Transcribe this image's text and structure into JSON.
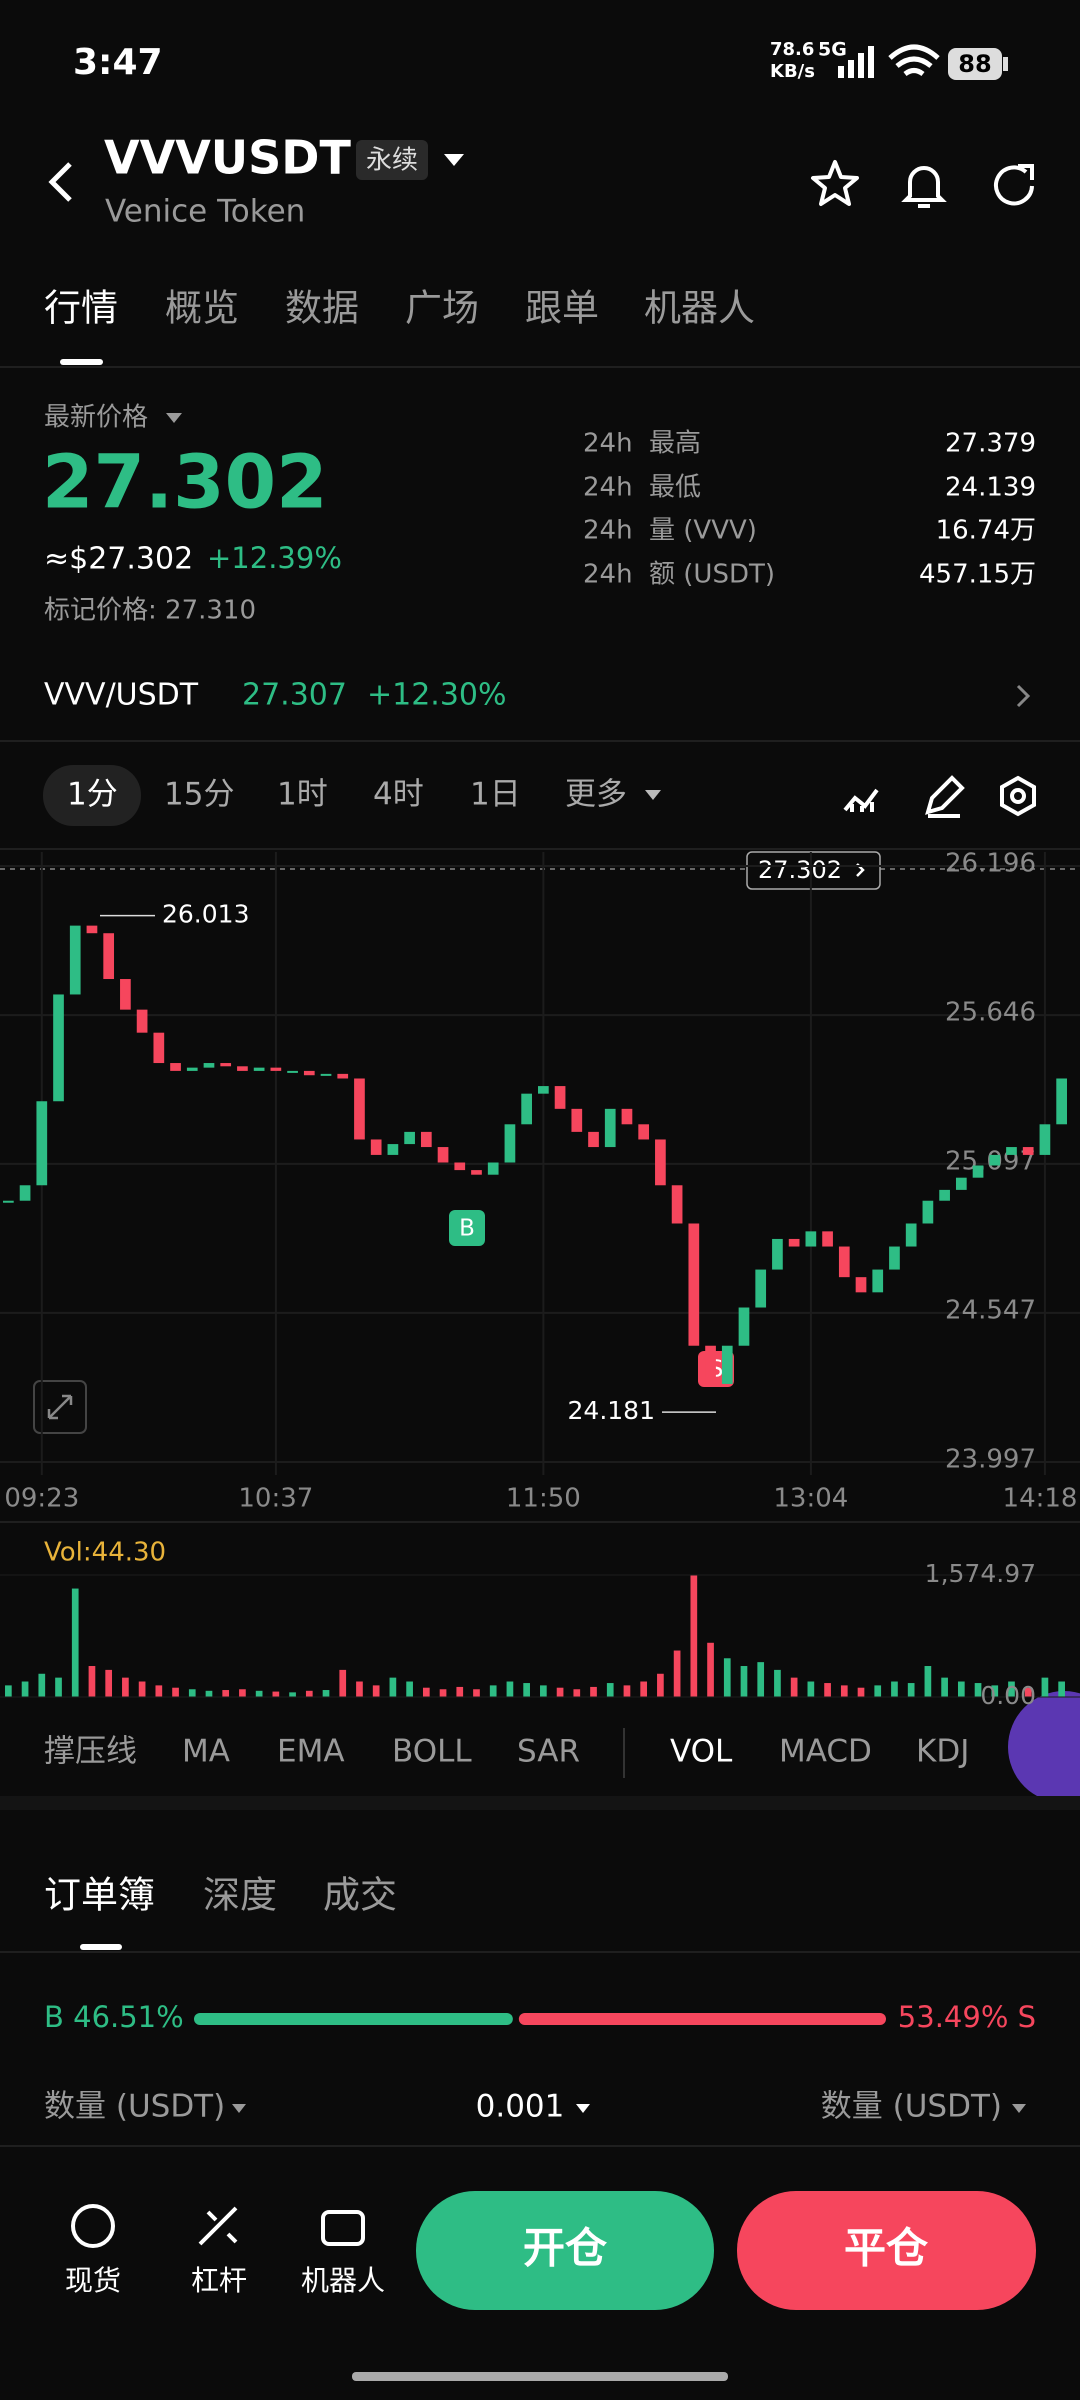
{
  "status": {
    "time": "3:47",
    "speed": "78.6",
    "speed_unit": "KB/s",
    "network": "5G",
    "battery": "88"
  },
  "header": {
    "symbol": "VVVUSDT",
    "contract": "永续",
    "name": "Venice Token"
  },
  "tabs": [
    "行情",
    "概览",
    "数据",
    "广场",
    "跟单",
    "机器人"
  ],
  "price": {
    "label": "最新价格",
    "last": "27.302",
    "usd": "≈$27.302",
    "change": "+12.39%",
    "mark": "标记价格: 27.310"
  },
  "stats": [
    {
      "period": "24h",
      "label": "最高",
      "value": "27.379"
    },
    {
      "period": "24h",
      "label": "最低",
      "value": "24.139"
    },
    {
      "period": "24h",
      "label": "量 (VVV)",
      "value": "16.74万"
    },
    {
      "period": "24h",
      "label": "额 (USDT)",
      "value": "457.15万"
    }
  ],
  "spot": {
    "pair": "VVV/USDT",
    "price": "27.307",
    "change": "+12.30%"
  },
  "intervals": [
    "1分",
    "15分",
    "1时",
    "4时",
    "1日",
    "更多"
  ],
  "chart_data": {
    "type": "candlestick",
    "color_up": "#2ebd85",
    "color_down": "#f6465d",
    "categories": [
      null,
      null,
      "09:23",
      null,
      null,
      null,
      null,
      null,
      null,
      null,
      null,
      null,
      null,
      null,
      null,
      null,
      "10:37",
      null,
      null,
      null,
      null,
      null,
      null,
      null,
      null,
      null,
      null,
      null,
      null,
      null,
      null,
      null,
      "11:50",
      null,
      null,
      null,
      null,
      null,
      null,
      null,
      null,
      null,
      null,
      null,
      null,
      null,
      null,
      null,
      "13:04",
      null,
      null,
      null,
      null,
      null,
      null,
      null,
      null,
      null,
      null,
      null,
      null,
      null,
      "14:18",
      null
    ],
    "values": [
      24.961,
      25.018,
      25.328,
      25.722,
      25.976,
      25.948,
      25.779,
      25.666,
      25.581,
      25.469,
      25.44,
      25.452,
      25.469,
      25.457,
      25.44,
      25.452,
      25.44,
      25.44,
      25.424,
      25.429,
      25.412,
      25.187,
      25.13,
      25.17,
      25.215,
      25.159,
      25.102,
      25.074,
      25.057,
      25.102,
      25.243,
      25.356,
      25.384,
      25.3,
      25.215,
      25.159,
      25.3,
      25.243,
      25.187,
      25.018,
      24.877,
      24.426,
      24.285,
      24.426,
      24.567,
      24.707,
      24.82,
      24.792,
      24.848,
      24.792,
      24.679,
      24.623,
      24.707,
      24.792,
      24.877,
      24.961,
      25.001,
      25.046,
      25.091,
      25.13,
      25.159,
      25.13,
      25.243,
      25.412
    ],
    "ylim": [
      23.997,
      26.196
    ],
    "yticks": [
      26.196,
      25.646,
      25.097,
      24.547,
      23.997
    ],
    "grid": true,
    "high_label": 26.013,
    "low_label": 24.181,
    "last_price_tag": "27.302",
    "markers": [
      "B",
      "S"
    ],
    "volume": {
      "label": "Vol:44.30",
      "values": [
        150,
        200,
        300,
        250,
        1400,
        400,
        350,
        250,
        200,
        150,
        120,
        100,
        80,
        90,
        100,
        80,
        70,
        60,
        80,
        90,
        350,
        200,
        150,
        250,
        200,
        120,
        100,
        130,
        100,
        150,
        200,
        180,
        150,
        120,
        100,
        130,
        180,
        150,
        200,
        300,
        600,
        1570,
        700,
        500,
        400,
        450,
        350,
        250,
        200,
        180,
        150,
        120,
        150,
        200,
        180,
        400,
        250,
        200,
        180,
        150,
        200,
        120,
        250,
        200
      ],
      "ylim": [
        0,
        1574.97
      ],
      "yticks": [
        {
          "value": 1574.97,
          "label": "1,574.97"
        },
        {
          "value": 0,
          "label": "0.00"
        }
      ]
    }
  },
  "indicators": [
    "撑压线",
    "MA",
    "EMA",
    "BOLL",
    "SAR",
    "VOL",
    "MACD",
    "KDJ"
  ],
  "orderbook": {
    "tabs": [
      "订单簿",
      "深度",
      "成交"
    ],
    "buy_percent": 46.51,
    "buy_label": "B 46.51%",
    "sell_percent": 53.49,
    "sell_label": "53.49% S",
    "col_left": "数量 (USDT)",
    "precision": "0.001",
    "col_right": "数量 (USDT)"
  },
  "nav": {
    "items": [
      "现货",
      "杠杆",
      "机器人"
    ],
    "open": "开仓",
    "close": "平仓"
  }
}
